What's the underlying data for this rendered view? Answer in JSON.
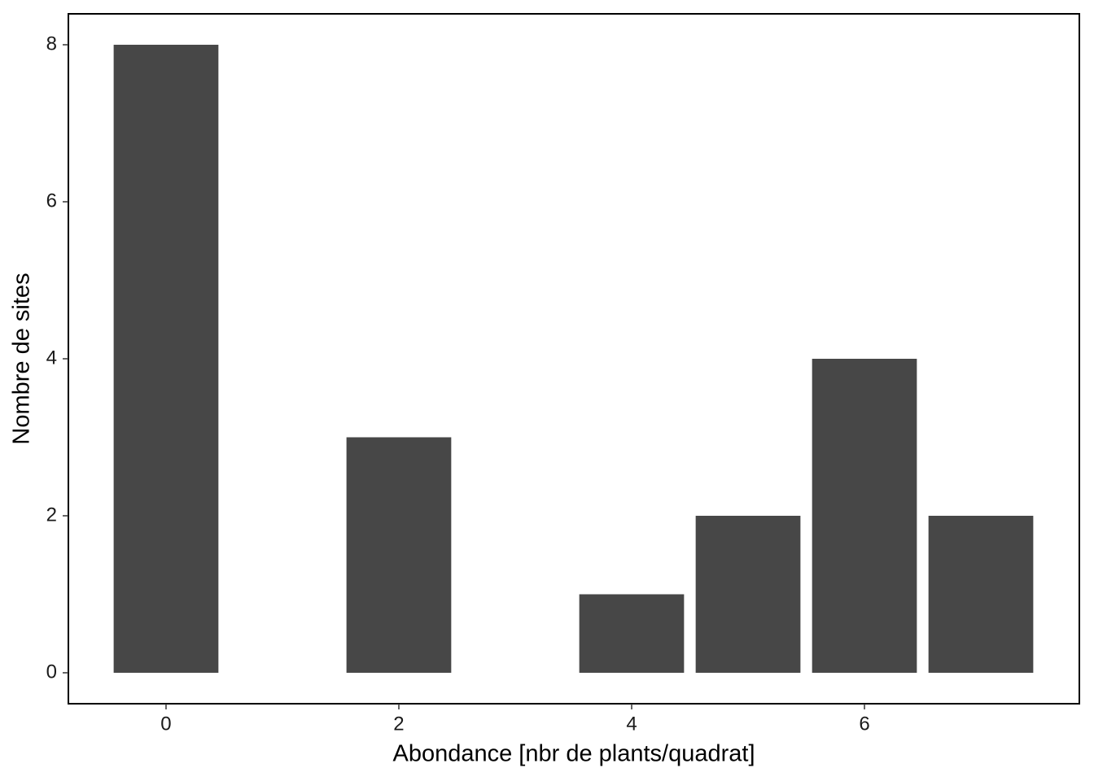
{
  "chart_data": {
    "type": "bar",
    "x": [
      0,
      2,
      4,
      5,
      6,
      7
    ],
    "values": [
      8,
      3,
      1,
      2,
      4,
      2
    ],
    "color": "#474747",
    "x_label": "Abondance [nbr de plants/quadrat]",
    "y_label": "Nombre de sites",
    "xlim": [
      -0.839,
      7.846
    ],
    "xticks": [
      0,
      2,
      4,
      6
    ],
    "ylim": [
      -0.394,
      8.394
    ],
    "yticks": [
      0,
      2,
      4,
      6,
      8
    ],
    "grid": false
  }
}
